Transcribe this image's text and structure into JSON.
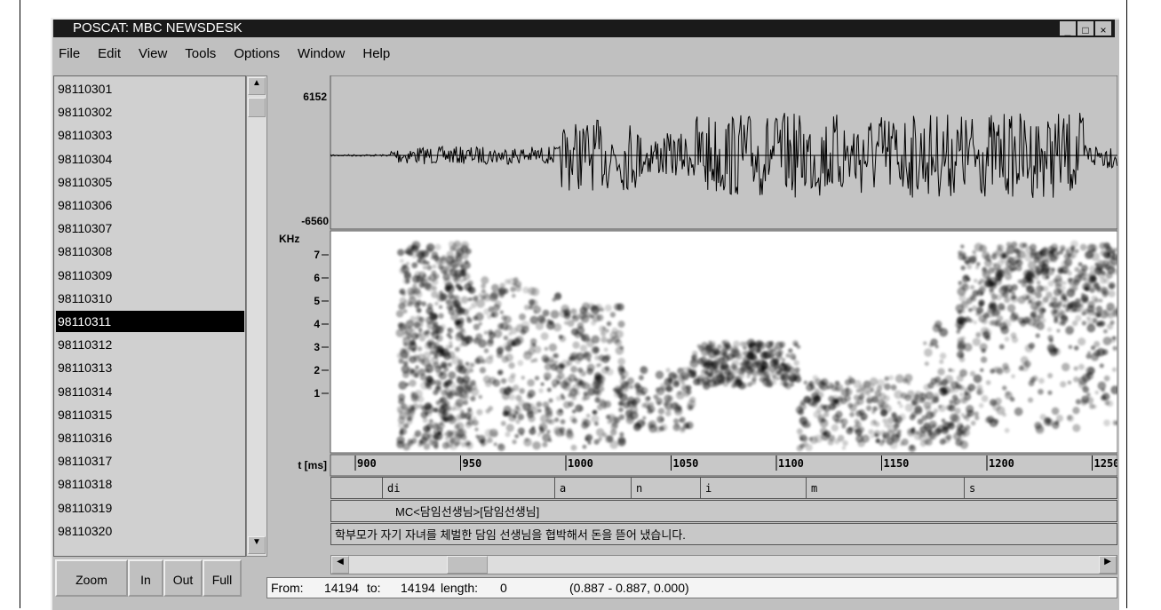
{
  "window": {
    "title": "POSCAT: MBC NEWSDESK",
    "menu": [
      "File",
      "Edit",
      "View",
      "Tools",
      "Options",
      "Window",
      "Help"
    ]
  },
  "file_list": {
    "items": [
      "98110301",
      "98110302",
      "98110303",
      "98110304",
      "98110305",
      "98110306",
      "98110307",
      "98110308",
      "98110309",
      "98110310",
      "98110311",
      "98110312",
      "98110313",
      "98110314",
      "98110315",
      "98110316",
      "98110317",
      "98110318",
      "98110319",
      "98110320"
    ]
  },
  "buttons": [
    "Zoom",
    "In",
    "Out",
    "Full"
  ],
  "waveform": {
    "max": 6152,
    "min": -6560
  },
  "spectrogram": {
    "unit": "KHz",
    "ticks": [
      7,
      6,
      5,
      4,
      3,
      2,
      1
    ]
  },
  "time_axis": {
    "label": "t [ms]",
    "ticks": [
      900,
      950,
      1000,
      1050,
      1100,
      1150,
      1200,
      1250
    ]
  },
  "segments": {
    "phones": [
      "di",
      "a",
      "n",
      "i",
      "m",
      "s"
    ],
    "word": "MC<담임선생님>[담임선생님]",
    "sentence": "학부모가 자기 자녀를 체벌한 담임 선생님을 협박해서 돈을 뜯어 냈습니다."
  },
  "status": {
    "from_label": "From:",
    "from": 14194,
    "to_label": "to:",
    "to": 14194,
    "length_label": "length:",
    "length": 0,
    "range": "(0.887 - 0.887, 0.000)"
  }
}
